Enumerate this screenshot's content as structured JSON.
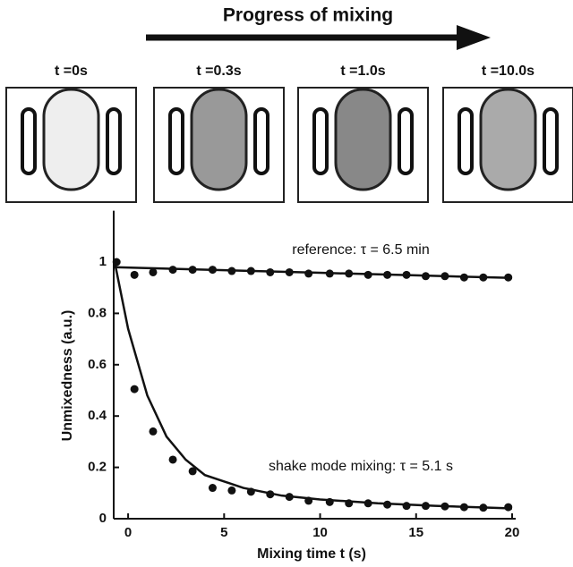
{
  "header": {
    "title": "Progress of mixing"
  },
  "panels": [
    {
      "label": "t =0s"
    },
    {
      "label": "t =0.3s"
    },
    {
      "label": "t =1.0s"
    },
    {
      "label": "t =10.0s"
    }
  ],
  "chart_data": {
    "type": "scatter",
    "x_label": "Mixing time t (s)",
    "y_label": "Unmixedness (a.u.)",
    "xlim": [
      -0.75,
      20
    ],
    "ylim": [
      0,
      1.2
    ],
    "xticks": [
      0,
      5,
      10,
      15,
      20
    ],
    "yticks": [
      0,
      0.2,
      0.4,
      0.6,
      0.8,
      1
    ],
    "series": [
      {
        "name": "reference: τ = 6.5 min",
        "color": "#111111",
        "x": [
          0.33,
          1.3,
          2.33,
          3.36,
          4.4,
          5.4,
          6.4,
          7.4,
          8.4,
          9.4,
          10.5,
          11.5,
          12.5,
          13.5,
          14.5,
          15.5,
          16.5,
          17.5,
          18.5,
          19.8
        ],
        "values": [
          0.95,
          0.96,
          0.97,
          0.97,
          0.97,
          0.965,
          0.965,
          0.96,
          0.96,
          0.955,
          0.955,
          0.955,
          0.95,
          0.95,
          0.95,
          0.945,
          0.945,
          0.94,
          0.94,
          0.94
        ],
        "fit_x": [
          -0.75,
          5,
          10,
          15,
          20
        ],
        "fit_values": [
          0.98,
          0.968,
          0.958,
          0.948,
          0.938
        ]
      },
      {
        "name": "shake mode mixing: τ = 5.1 s",
        "color": "#111111",
        "x": [
          -0.6,
          0.33,
          1.3,
          2.33,
          3.36,
          4.4,
          5.4,
          6.4,
          7.4,
          8.4,
          9.4,
          10.5,
          11.5,
          12.5,
          13.5,
          14.5,
          15.5,
          16.5,
          17.5,
          18.5,
          19.8
        ],
        "values": [
          1.0,
          0.505,
          0.34,
          0.23,
          0.185,
          0.12,
          0.11,
          0.105,
          0.095,
          0.085,
          0.07,
          0.065,
          0.06,
          0.06,
          0.055,
          0.05,
          0.05,
          0.048,
          0.045,
          0.043,
          0.045
        ],
        "fit_x": [
          -0.7,
          0,
          1,
          2,
          3,
          4,
          6,
          8,
          10,
          13,
          16,
          20
        ],
        "fit_values": [
          1.0,
          0.74,
          0.48,
          0.32,
          0.23,
          0.17,
          0.12,
          0.09,
          0.075,
          0.06,
          0.05,
          0.04
        ]
      }
    ]
  }
}
